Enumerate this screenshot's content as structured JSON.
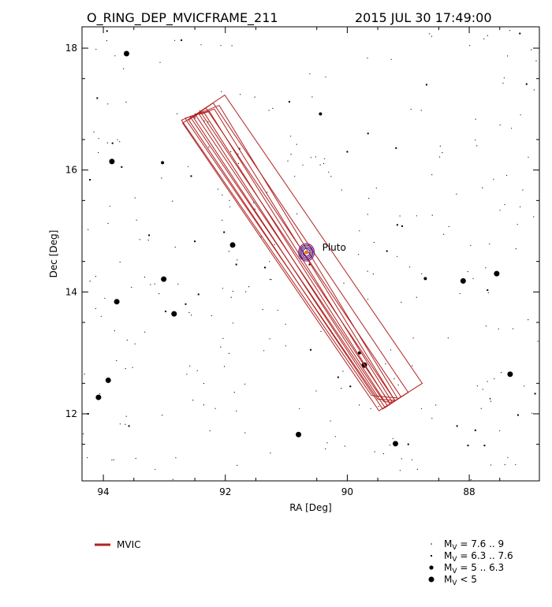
{
  "chart_data": {
    "type": "scatter",
    "title_left": "O_RING_DEP_MVICFRAME_211",
    "title_right": "2015 JUL 30 17:49:00",
    "xlabel": "RA [Deg]",
    "ylabel": "Dec [Deg]",
    "xlim": [
      94.35,
      86.85
    ],
    "ylim": [
      10.9,
      18.35
    ],
    "x_ticks": [
      94,
      92,
      90,
      88
    ],
    "y_ticks": [
      12,
      14,
      16,
      18
    ],
    "grid": false,
    "target": {
      "label": "Pluto",
      "ra": 90.67,
      "dec": 14.65
    },
    "frame_color": "#b22222",
    "frames": [
      {
        "corners": [
          [
            92.7,
            16.77
          ],
          [
            89.48,
            12.05
          ],
          [
            88.77,
            12.5
          ],
          [
            92.01,
            17.23
          ]
        ]
      },
      {
        "corners": [
          [
            92.6,
            16.82
          ],
          [
            89.42,
            12.08
          ],
          [
            89.0,
            12.35
          ],
          [
            92.2,
            17.1
          ]
        ]
      },
      {
        "corners": [
          [
            92.52,
            16.86
          ],
          [
            89.38,
            12.1
          ],
          [
            89.12,
            12.28
          ],
          [
            92.32,
            17.02
          ]
        ]
      },
      {
        "corners": [
          [
            92.42,
            16.9
          ],
          [
            89.34,
            12.13
          ],
          [
            89.22,
            12.22
          ],
          [
            92.42,
            16.97
          ]
        ]
      },
      {
        "corners": [
          [
            92.34,
            16.93
          ],
          [
            89.3,
            12.16
          ],
          [
            89.32,
            12.2
          ],
          [
            92.5,
            16.92
          ]
        ]
      },
      {
        "corners": [
          [
            92.26,
            16.96
          ],
          [
            89.26,
            12.19
          ],
          [
            89.4,
            12.2
          ],
          [
            92.58,
            16.88
          ]
        ]
      },
      {
        "corners": [
          [
            92.18,
            17.0
          ],
          [
            89.22,
            12.22
          ],
          [
            89.5,
            12.24
          ],
          [
            92.66,
            16.85
          ]
        ]
      },
      {
        "corners": [
          [
            92.1,
            17.06
          ],
          [
            89.18,
            12.26
          ],
          [
            89.6,
            12.3
          ],
          [
            92.72,
            16.82
          ]
        ]
      }
    ],
    "stars": {
      "bright": [
        [
          93.78,
          13.84
        ],
        [
          93.01,
          14.21
        ],
        [
          92.84,
          13.64
        ],
        [
          91.88,
          14.77
        ],
        [
          90.8,
          11.66
        ],
        [
          89.72,
          12.8
        ],
        [
          89.21,
          11.51
        ],
        [
          88.1,
          14.18
        ],
        [
          87.55,
          14.3
        ],
        [
          87.33,
          12.65
        ],
        [
          93.92,
          12.55
        ],
        [
          94.08,
          12.27
        ],
        [
          93.62,
          17.91
        ],
        [
          93.86,
          16.14
        ]
      ],
      "medium": [
        [
          93.03,
          16.12
        ],
        [
          90.44,
          16.92
        ],
        [
          88.72,
          14.22
        ],
        [
          89.8,
          13.0
        ]
      ],
      "small": [
        [
          92.56,
          15.9
        ],
        [
          91.77,
          16.35
        ],
        [
          90.62,
          14.45
        ],
        [
          89.66,
          16.6
        ],
        [
          89.2,
          16.36
        ],
        [
          89.1,
          15.08
        ],
        [
          88.7,
          17.4
        ],
        [
          87.7,
          14.03
        ],
        [
          87.9,
          11.73
        ],
        [
          88.2,
          11.8
        ],
        [
          89.0,
          11.5
        ],
        [
          90.6,
          13.05
        ],
        [
          91.82,
          14.45
        ],
        [
          91.35,
          14.4
        ],
        [
          92.44,
          13.96
        ],
        [
          92.65,
          13.8
        ],
        [
          92.98,
          13.68
        ],
        [
          93.58,
          11.8
        ],
        [
          94.22,
          15.84
        ],
        [
          93.85,
          16.44
        ],
        [
          93.7,
          16.05
        ],
        [
          94.1,
          17.18
        ],
        [
          93.94,
          18.28
        ],
        [
          92.72,
          18.13
        ],
        [
          90.95,
          17.12
        ],
        [
          90.0,
          16.3
        ],
        [
          89.35,
          14.67
        ],
        [
          89.18,
          15.1
        ],
        [
          87.2,
          11.98
        ],
        [
          87.06,
          17.41
        ],
        [
          87.17,
          18.24
        ],
        [
          88.02,
          11.48
        ],
        [
          92.02,
          14.98
        ],
        [
          92.5,
          14.83
        ],
        [
          93.25,
          14.93
        ],
        [
          94.25,
          12.0
        ],
        [
          87.75,
          11.48
        ],
        [
          86.92,
          12.33
        ],
        [
          90.15,
          12.6
        ],
        [
          89.95,
          12.45
        ]
      ]
    },
    "faint_star_count": 260,
    "legend": {
      "line_label": "MVIC",
      "magnitude_classes": [
        {
          "symbol": "M",
          "sub": "V",
          "rest": " = 7.6 .. 9"
        },
        {
          "symbol": "M",
          "sub": "V",
          "rest": " = 6.3 .. 7.6"
        },
        {
          "symbol": "M",
          "sub": "V",
          "rest": " = 5 .. 6.3"
        },
        {
          "symbol": "M",
          "sub": "V",
          "rest": " < 5"
        }
      ]
    }
  }
}
